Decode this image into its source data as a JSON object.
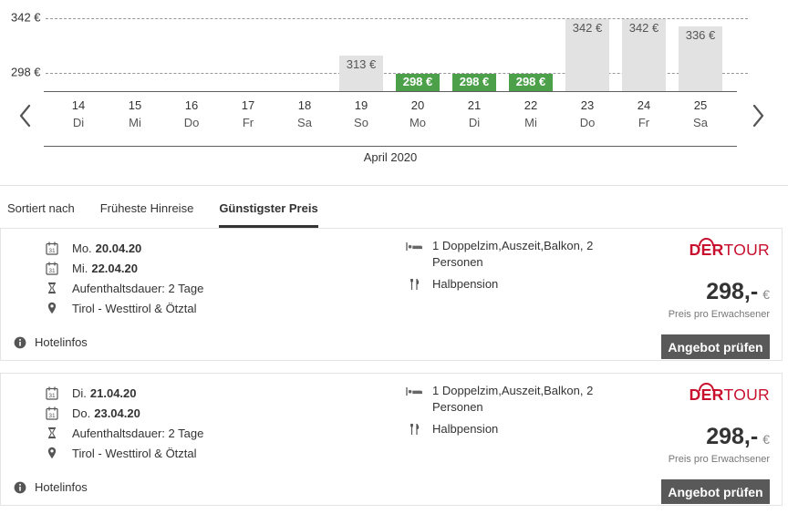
{
  "colors": {
    "highlight_green": "#4ca04a",
    "bar_gray": "#e2e2e2",
    "brand_red": "#c8102e",
    "cta_gray": "#595959"
  },
  "chart": {
    "y_axis_labels": [
      "342 €",
      "298 €"
    ],
    "month_label": "April 2020",
    "days": [
      {
        "num": "14",
        "wd": "Di",
        "value": null,
        "label": null,
        "highlight": false
      },
      {
        "num": "15",
        "wd": "Mi",
        "value": null,
        "label": null,
        "highlight": false
      },
      {
        "num": "16",
        "wd": "Do",
        "value": null,
        "label": null,
        "highlight": false
      },
      {
        "num": "17",
        "wd": "Fr",
        "value": null,
        "label": null,
        "highlight": false
      },
      {
        "num": "18",
        "wd": "Sa",
        "value": null,
        "label": null,
        "highlight": false
      },
      {
        "num": "19",
        "wd": "So",
        "value": 313,
        "label": "313 €",
        "highlight": false
      },
      {
        "num": "20",
        "wd": "Mo",
        "value": 298,
        "label": "298 €",
        "highlight": true
      },
      {
        "num": "21",
        "wd": "Di",
        "value": 298,
        "label": "298 €",
        "highlight": true
      },
      {
        "num": "22",
        "wd": "Mi",
        "value": 298,
        "label": "298 €",
        "highlight": true
      },
      {
        "num": "23",
        "wd": "Do",
        "value": 342,
        "label": "342 €",
        "highlight": false
      },
      {
        "num": "24",
        "wd": "Fr",
        "value": 342,
        "label": "342 €",
        "highlight": false
      },
      {
        "num": "25",
        "wd": "Sa",
        "value": 336,
        "label": "336 €",
        "highlight": false
      }
    ]
  },
  "chart_data": {
    "type": "bar",
    "title": "",
    "xlabel": "April 2020",
    "ylabel": "€",
    "categories": [
      "14 Di",
      "15 Mi",
      "16 Do",
      "17 Fr",
      "18 Sa",
      "19 So",
      "20 Mo",
      "21 Di",
      "22 Mi",
      "23 Do",
      "24 Fr",
      "25 Sa"
    ],
    "values": [
      null,
      null,
      null,
      null,
      null,
      313,
      298,
      298,
      298,
      342,
      342,
      336
    ],
    "yticks": [
      298,
      342
    ],
    "highlighted_value": 298,
    "grid": "dashed-horizontal",
    "legend": false
  },
  "tabs": {
    "items": [
      {
        "label": "Sortiert nach",
        "active": false
      },
      {
        "label": "Früheste Hinreise",
        "active": false
      },
      {
        "label": "Günstigster Preis",
        "active": true
      }
    ]
  },
  "offers": [
    {
      "checkin_label": "Mo.",
      "checkin_date": "20.04.20",
      "checkout_label": "Mi.",
      "checkout_date": "22.04.20",
      "duration": "Aufenthaltsdauer: 2 Tage",
      "region": "Tirol - Westtirol & Ötztal",
      "room": "1 Doppelzim,Auszeit,Balkon, 2 Personen",
      "board": "Halbpension",
      "brand_der": "DER",
      "brand_tour": "TOUR",
      "price": "298,-",
      "currency": "€",
      "price_note": "Preis pro Erwachsener",
      "hotel_info_label": "Hotelinfos",
      "cta_label": "Angebot prüfen"
    },
    {
      "checkin_label": "Di.",
      "checkin_date": "21.04.20",
      "checkout_label": "Do.",
      "checkout_date": "23.04.20",
      "duration": "Aufenthaltsdauer: 2 Tage",
      "region": "Tirol - Westtirol & Ötztal",
      "room": "1 Doppelzim,Auszeit,Balkon, 2 Personen",
      "board": "Halbpension",
      "brand_der": "DER",
      "brand_tour": "TOUR",
      "price": "298,-",
      "currency": "€",
      "price_note": "Preis pro Erwachsener",
      "hotel_info_label": "Hotelinfos",
      "cta_label": "Angebot prüfen"
    }
  ]
}
